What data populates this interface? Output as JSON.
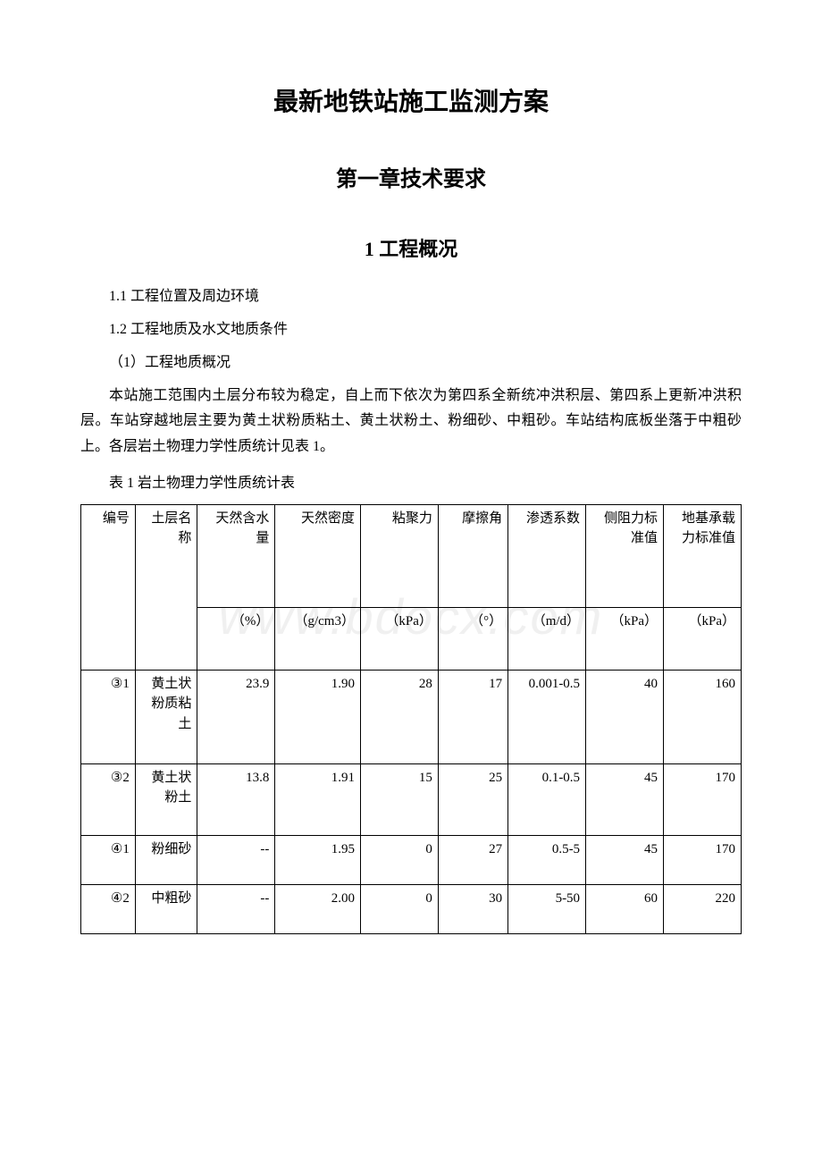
{
  "watermark": "www.bdocx.com",
  "title": "最新地铁站施工监测方案",
  "chapter": "第一章技术要求",
  "section_heading": "1 工程概况",
  "sections": {
    "s11": "1.1 工程位置及周边环境",
    "s12": "1.2 工程地质及水文地质条件",
    "s12_sub": "（1）工程地质概况"
  },
  "paragraph": "本站施工范围内土层分布较为稳定，自上而下依次为第四系全新统冲洪积层、第四系上更新冲洪积层。车站穿越地层主要为黄土状粉质粘土、黄土状粉土、粉细砂、中粗砂。车站结构底板坐落于中粗砂上。各层岩土物理力学性质统计见表 1。",
  "table_caption": "表 1 岩土物理力学性质统计表",
  "table": {
    "headers": {
      "h1": "编号",
      "h2": "土层名称",
      "h3": "天然含水量",
      "h4": "天然密度",
      "h5": "粘聚力",
      "h6": "摩擦角",
      "h7": "渗透系数",
      "h8": "侧阻力标准值",
      "h9": "地基承载力标准值"
    },
    "units": {
      "u3": "（%）",
      "u4": "（g/cm3）",
      "u5": "（kPa）",
      "u6": "（°）",
      "u7": "（m/d）",
      "u8": "（kPa）",
      "u9": "（kPa）"
    },
    "rows": [
      {
        "c1": "③1",
        "c2": "黄土状粉质粘土",
        "c3": "23.9",
        "c4": "1.90",
        "c5": "28",
        "c6": "17",
        "c7": "0.001-0.5",
        "c8": "40",
        "c9": "160"
      },
      {
        "c1": "③2",
        "c2": "黄土状粉土",
        "c3": "13.8",
        "c4": "1.91",
        "c5": "15",
        "c6": "25",
        "c7": "0.1-0.5",
        "c8": "45",
        "c9": "170"
      },
      {
        "c1": "④1",
        "c2": "粉细砂",
        "c3": "--",
        "c4": "1.95",
        "c5": "0",
        "c6": "27",
        "c7": "0.5-5",
        "c8": "45",
        "c9": "170"
      },
      {
        "c1": "④2",
        "c2": "中粗砂",
        "c3": "--",
        "c4": "2.00",
        "c5": "0",
        "c6": "30",
        "c7": "5-50",
        "c8": "60",
        "c9": "220"
      }
    ]
  },
  "styles": {
    "body_font_size": 16,
    "h1_font_size": 28,
    "h2_font_size": 24,
    "h3_font_size": 22,
    "text_color": "#000000",
    "background_color": "#ffffff",
    "border_color": "#000000",
    "watermark_color": "#f0f0f0"
  }
}
